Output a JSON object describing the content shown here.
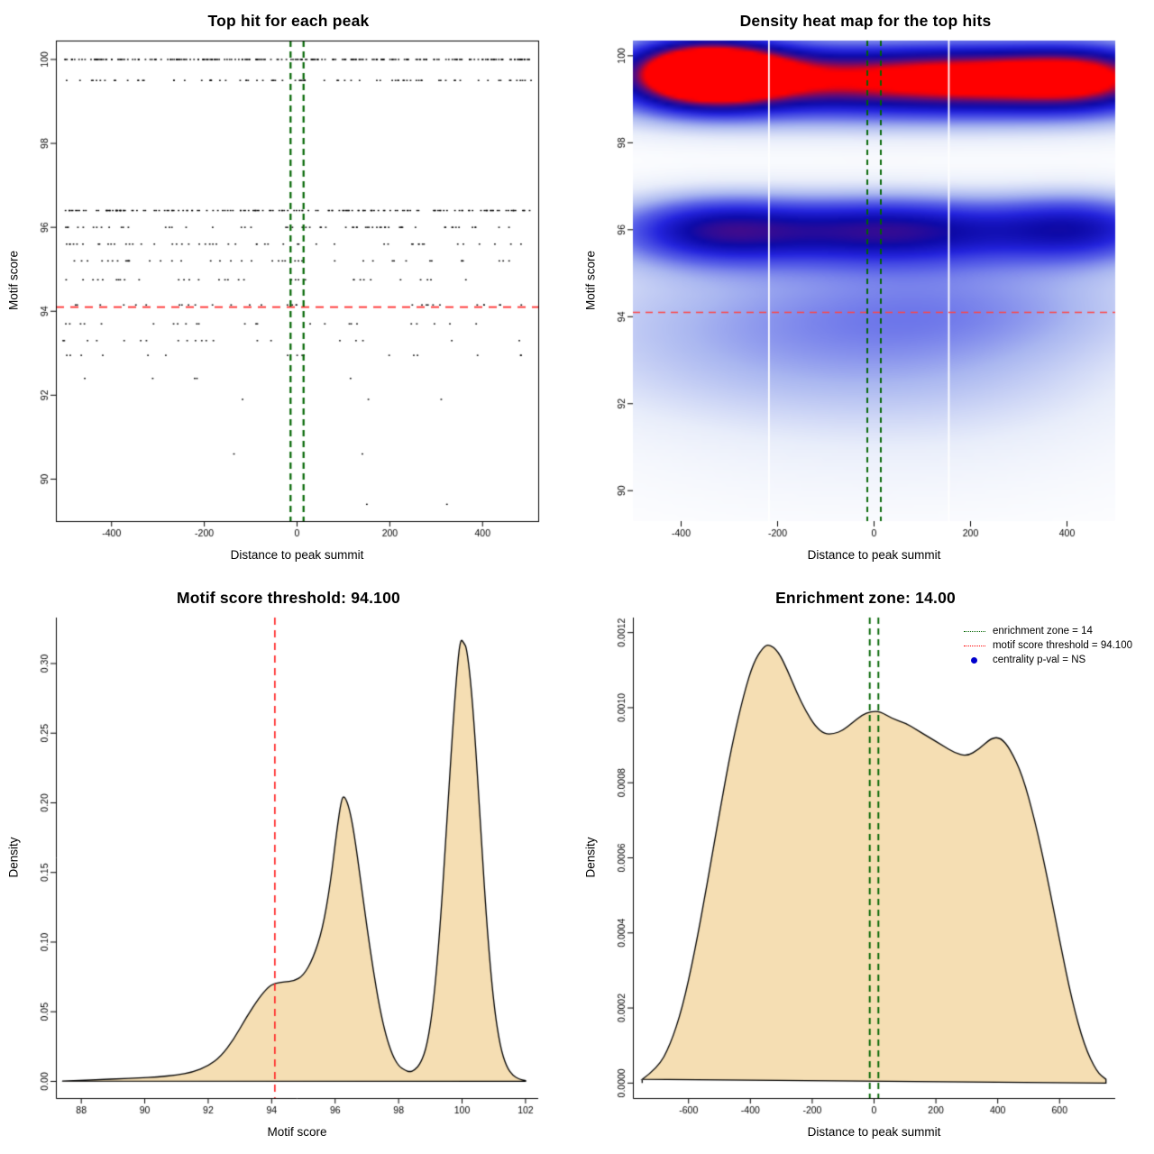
{
  "page": {
    "background": "#ffffff"
  },
  "chart_data": [
    {
      "type": "scatter",
      "title": "Top hit for each peak",
      "xlabel": "Distance to peak summit",
      "ylabel": "Motif score",
      "xlim": [
        -520,
        520
      ],
      "ylim": [
        89.0,
        100.45
      ],
      "xticks": [
        -400,
        -200,
        0,
        200,
        400
      ],
      "yticks": [
        90,
        92,
        94,
        96,
        98,
        100
      ],
      "point_color": "#000000",
      "seed": 1234,
      "bands": [
        {
          "y": 100.0,
          "n": 230
        },
        {
          "y": 99.5,
          "n": 80
        },
        {
          "y": 96.4,
          "n": 160
        },
        {
          "y": 96.0,
          "n": 60
        },
        {
          "y": 95.6,
          "n": 50
        },
        {
          "y": 95.2,
          "n": 42
        },
        {
          "y": 94.75,
          "n": 34
        },
        {
          "y": 94.15,
          "n": 30
        },
        {
          "y": 93.7,
          "n": 24
        },
        {
          "y": 93.3,
          "n": 20
        },
        {
          "y": 92.95,
          "n": 16
        },
        {
          "y": 92.4,
          "n": 5
        },
        {
          "y": 91.9,
          "n": 3
        },
        {
          "y": 90.6,
          "n": 2
        },
        {
          "y": 89.4,
          "n": 2
        }
      ],
      "hline": {
        "y": 94.1,
        "color": "#ff2a2a",
        "dash": [
          9,
          7
        ],
        "width": 1.7
      },
      "vlines": {
        "x": [
          -14,
          14
        ],
        "color": "#006400",
        "dash": [
          7,
          5
        ],
        "width": 2.2
      }
    },
    {
      "type": "heatmap",
      "title": "Density heat map for the top hits",
      "xlabel": "Distance to peak summit",
      "ylabel": "Motif score",
      "xlim": [
        -500,
        500
      ],
      "ylim": [
        89.3,
        100.35
      ],
      "xticks": [
        -400,
        -200,
        0,
        200,
        400
      ],
      "yticks": [
        90,
        92,
        94,
        96,
        98,
        100
      ],
      "colormap": [
        [
          0,
          "#ffffff"
        ],
        [
          0.1,
          "#e8edfa"
        ],
        [
          0.25,
          "#aab7f0"
        ],
        [
          0.4,
          "#5b63e8"
        ],
        [
          0.55,
          "#2424dd"
        ],
        [
          0.7,
          "#0d0aa8"
        ],
        [
          0.8,
          "#3c0b8f"
        ],
        [
          0.88,
          "#7a0a64"
        ],
        [
          0.94,
          "#c40428"
        ],
        [
          1,
          "#ff0000"
        ]
      ],
      "blobs": [
        {
          "x": -350,
          "y": 99.62,
          "sx": 115,
          "sy": 0.55,
          "a": 1.2
        },
        {
          "x": -60,
          "y": 99.5,
          "sx": 230,
          "sy": 0.55,
          "a": 0.55
        },
        {
          "x": 260,
          "y": 99.5,
          "sx": 170,
          "sy": 0.55,
          "a": 0.55
        },
        {
          "x": 455,
          "y": 99.5,
          "sx": 120,
          "sy": 0.55,
          "a": 0.58
        },
        {
          "x": 0,
          "y": 99.5,
          "sx": 520,
          "sy": 0.6,
          "a": 0.3
        },
        {
          "x": 0,
          "y": 98.7,
          "sx": 520,
          "sy": 0.5,
          "a": 0.14
        },
        {
          "x": -330,
          "y": 96.0,
          "sx": 140,
          "sy": 0.55,
          "a": 0.5
        },
        {
          "x": 40,
          "y": 96.0,
          "sx": 180,
          "sy": 0.55,
          "a": 0.48
        },
        {
          "x": 430,
          "y": 96.05,
          "sx": 130,
          "sy": 0.55,
          "a": 0.45
        },
        {
          "x": 0,
          "y": 96.0,
          "sx": 520,
          "sy": 0.6,
          "a": 0.22
        },
        {
          "x": -150,
          "y": 94.2,
          "sx": 420,
          "sy": 1.0,
          "a": 0.2
        },
        {
          "x": 250,
          "y": 94.3,
          "sx": 300,
          "sy": 0.9,
          "a": 0.16
        },
        {
          "x": -250,
          "y": 92.7,
          "sx": 350,
          "sy": 1.0,
          "a": 0.13
        },
        {
          "x": 200,
          "y": 92.5,
          "sx": 300,
          "sy": 1.0,
          "a": 0.1
        },
        {
          "x": 0,
          "y": 90.7,
          "sx": 450,
          "sy": 1.2,
          "a": 0.05
        }
      ],
      "white_vlines": [
        -218,
        155
      ],
      "hline": {
        "y": 94.1,
        "color": "#ff4444",
        "dash": [
          8,
          6
        ],
        "width": 1.5
      },
      "vlines": {
        "x": [
          -14,
          14
        ],
        "color": "#006400",
        "dash": [
          6,
          5
        ],
        "width": 1.9
      }
    },
    {
      "type": "area",
      "title": "Motif score threshold: 94.100",
      "xlabel": "Motif score",
      "ylabel": "Density",
      "xlim": [
        87.2,
        102.4
      ],
      "ylim": [
        -0.012,
        0.333
      ],
      "xticks": [
        88,
        90,
        92,
        94,
        96,
        98,
        100,
        102
      ],
      "yticks": [
        0,
        0.05,
        0.1,
        0.15,
        0.2,
        0.25,
        0.3
      ],
      "ytick_labels": [
        "0.00",
        "0.05",
        "0.10",
        "0.15",
        "0.20",
        "0.25",
        "0.30"
      ],
      "fill": "#f5deb3",
      "stroke": "#000000",
      "points": [
        [
          87.4,
          0.0002
        ],
        [
          88.0,
          0.0008
        ],
        [
          88.6,
          0.0013
        ],
        [
          89.2,
          0.0019
        ],
        [
          89.8,
          0.0025
        ],
        [
          90.4,
          0.0032
        ],
        [
          91.0,
          0.0045
        ],
        [
          91.5,
          0.0065
        ],
        [
          92.0,
          0.011
        ],
        [
          92.4,
          0.018
        ],
        [
          92.8,
          0.03
        ],
        [
          93.2,
          0.046
        ],
        [
          93.6,
          0.06
        ],
        [
          93.9,
          0.068
        ],
        [
          94.1,
          0.0705
        ],
        [
          94.4,
          0.0715
        ],
        [
          94.7,
          0.072
        ],
        [
          95.0,
          0.076
        ],
        [
          95.3,
          0.088
        ],
        [
          95.6,
          0.109
        ],
        [
          95.85,
          0.142
        ],
        [
          96.05,
          0.18
        ],
        [
          96.2,
          0.203
        ],
        [
          96.3,
          0.205
        ],
        [
          96.45,
          0.196
        ],
        [
          96.6,
          0.178
        ],
        [
          96.8,
          0.145
        ],
        [
          97.0,
          0.111
        ],
        [
          97.2,
          0.08
        ],
        [
          97.4,
          0.053
        ],
        [
          97.6,
          0.033
        ],
        [
          97.8,
          0.019
        ],
        [
          98.0,
          0.011
        ],
        [
          98.2,
          0.008
        ],
        [
          98.35,
          0.0068
        ],
        [
          98.5,
          0.008
        ],
        [
          98.7,
          0.013
        ],
        [
          98.9,
          0.026
        ],
        [
          99.1,
          0.056
        ],
        [
          99.3,
          0.108
        ],
        [
          99.5,
          0.178
        ],
        [
          99.7,
          0.252
        ],
        [
          99.85,
          0.298
        ],
        [
          99.95,
          0.318
        ],
        [
          100.05,
          0.315
        ],
        [
          100.15,
          0.311
        ],
        [
          100.3,
          0.281
        ],
        [
          100.45,
          0.233
        ],
        [
          100.6,
          0.176
        ],
        [
          100.8,
          0.106
        ],
        [
          101.0,
          0.055
        ],
        [
          101.2,
          0.025
        ],
        [
          101.4,
          0.0105
        ],
        [
          101.6,
          0.0042
        ],
        [
          101.8,
          0.0016
        ],
        [
          102.0,
          0.0006
        ]
      ],
      "vline": {
        "x": 94.1,
        "color": "#ff2a2a",
        "dash": [
          8,
          6
        ],
        "width": 1.7
      }
    },
    {
      "type": "area",
      "title": "Enrichment zone: 14.00",
      "xlabel": "Distance to peak summit",
      "ylabel": "Density",
      "xlim": [
        -780,
        780
      ],
      "ylim": [
        -4e-05,
        0.00124
      ],
      "xticks": [
        -600,
        -400,
        -200,
        0,
        200,
        400,
        600
      ],
      "yticks": [
        0,
        0.0002,
        0.0004,
        0.0006,
        0.0008,
        0.001,
        0.0012
      ],
      "ytick_labels": [
        "0.0000",
        "0.0002",
        "0.0004",
        "0.0006",
        "0.0008",
        "0.0010",
        "0.0012"
      ],
      "fill": "#f5deb3",
      "stroke": "#000000",
      "points": [
        [
          -750,
          1e-05
        ],
        [
          -700,
          4e-05
        ],
        [
          -660,
          0.0001
        ],
        [
          -620,
          0.0002
        ],
        [
          -580,
          0.00035
        ],
        [
          -540,
          0.00053
        ],
        [
          -500,
          0.00072
        ],
        [
          -460,
          0.0009
        ],
        [
          -420,
          0.00104
        ],
        [
          -390,
          0.00112
        ],
        [
          -360,
          0.00116
        ],
        [
          -340,
          0.00117
        ],
        [
          -310,
          0.00115
        ],
        [
          -280,
          0.0011
        ],
        [
          -250,
          0.00104
        ],
        [
          -220,
          0.00099
        ],
        [
          -190,
          0.00095
        ],
        [
          -160,
          0.00093
        ],
        [
          -130,
          0.00093
        ],
        [
          -100,
          0.00094
        ],
        [
          -70,
          0.00096
        ],
        [
          -40,
          0.00098
        ],
        [
          -10,
          0.00099
        ],
        [
          20,
          0.00099
        ],
        [
          60,
          0.00097
        ],
        [
          100,
          0.00096
        ],
        [
          140,
          0.00094
        ],
        [
          180,
          0.00092
        ],
        [
          220,
          0.0009
        ],
        [
          260,
          0.00088
        ],
        [
          300,
          0.00087
        ],
        [
          340,
          0.00089
        ],
        [
          380,
          0.00092
        ],
        [
          410,
          0.00092
        ],
        [
          440,
          0.00089
        ],
        [
          480,
          0.00082
        ],
        [
          520,
          0.0007
        ],
        [
          560,
          0.00055
        ],
        [
          600,
          0.00038
        ],
        [
          640,
          0.00022
        ],
        [
          680,
          0.0001
        ],
        [
          720,
          3e-05
        ],
        [
          750,
          1e-05
        ]
      ],
      "vlines": {
        "x": [
          -14,
          14
        ],
        "color": "#006400",
        "dash": [
          7,
          5
        ],
        "width": 1.9
      },
      "legend": {
        "items": [
          {
            "label": "enrichment zone = 14",
            "type": "dotted-line",
            "color": "#006400"
          },
          {
            "label": "motif score threshold = 94.100",
            "type": "dotted-line",
            "color": "#ff0000"
          },
          {
            "label": "centrality p-val = NS",
            "type": "point",
            "color": "#0000cd"
          }
        ]
      }
    }
  ]
}
